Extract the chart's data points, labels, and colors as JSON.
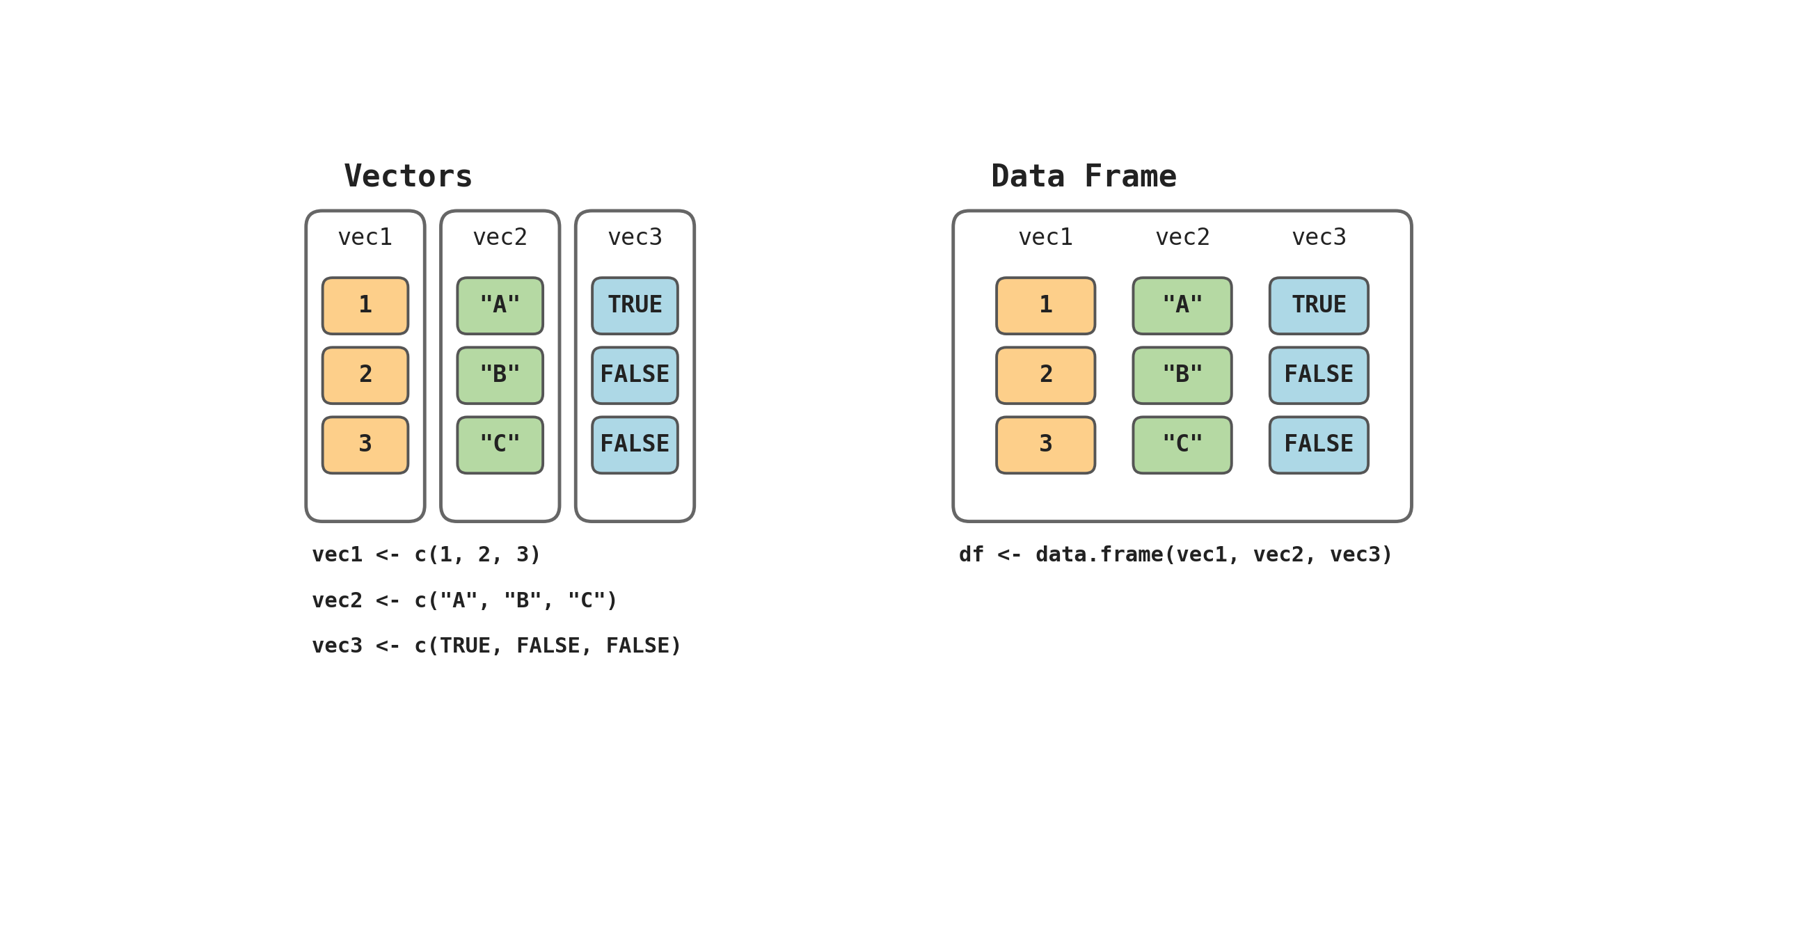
{
  "background_color": "#ffffff",
  "title_vectors": "Vectors",
  "title_dataframe": "Data Frame",
  "title_fontsize": 32,
  "font_family": "DejaVu Sans Mono",
  "vec1_label": "vec1",
  "vec2_label": "vec2",
  "vec3_label": "vec3",
  "vec1_values": [
    "1",
    "2",
    "3"
  ],
  "vec2_values": [
    "\"A\"",
    "\"B\"",
    "\"C\""
  ],
  "vec3_values": [
    "TRUE",
    "FALSE",
    "FALSE"
  ],
  "color_orange": "#FDCF8A",
  "color_green": "#B5D9A3",
  "color_blue": "#ADD8E6",
  "color_border": "#666666",
  "color_box_border": "#555555",
  "code_lines": [
    "vec1 <- c(1, 2, 3)",
    "vec2 <- c(\"A\", \"B\", \"C\")",
    "vec3 <- c(TRUE, FALSE, FALSE)"
  ],
  "df_code": "df <- data.frame(vec1, vec2, vec3)",
  "code_fontsize": 22,
  "label_fontsize": 24,
  "cell_fontsize": 24
}
